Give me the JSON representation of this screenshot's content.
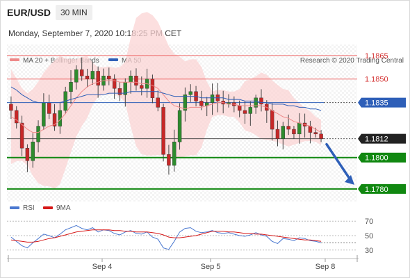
{
  "header": {
    "pair": "EUR/USD",
    "timeframe": "30 MIN",
    "datetime": "Monday, September 7, 2020 10:18:25 PM CET"
  },
  "legend": {
    "ma20": "MA 20 + Bollinger Bands",
    "ma50": "MA 50",
    "credit": "Research © 2020 Trading Central",
    "rsi": "RSI",
    "rsi_ma": "9MA"
  },
  "colors": {
    "bullish": "#2e8b2e",
    "bearish": "#c62828",
    "support": "#118811",
    "resistance": "#ee6666",
    "pivot": "#2e5fb8",
    "current": "#222222",
    "bollinger": "#fbd4d4",
    "ma50": "#2e5fb8",
    "rsi": "#4a78d0",
    "rsi_ma": "#d61818",
    "arrow": "#2e5fb8"
  },
  "chart_data": [
    {
      "type": "candlestick",
      "title": "EUR/USD",
      "timeframe": "30 MIN",
      "x_ticks": [
        "Sep 4",
        "Sep 5",
        "Sep 8"
      ],
      "ylim": [
        1.1772,
        1.1872
      ],
      "levels": [
        {
          "label": "1.1865",
          "value": 1.1865,
          "kind": "resistance"
        },
        {
          "label": "1.1850",
          "value": 1.185,
          "kind": "resistance"
        },
        {
          "label": "1.1835",
          "value": 1.1835,
          "kind": "pivot"
        },
        {
          "label": "1.1812",
          "value": 1.1812,
          "kind": "current"
        },
        {
          "label": "1.1800",
          "value": 1.18,
          "kind": "support"
        },
        {
          "label": "1.1780",
          "value": 1.178,
          "kind": "support"
        }
      ],
      "forecast": {
        "from": 1.1812,
        "to": 1.178
      },
      "series": [
        {
          "name": "EUR/USD",
          "close": [
            1.183,
            1.1822,
            1.1806,
            1.1798,
            1.181,
            1.182,
            1.1835,
            1.1828,
            1.182,
            1.183,
            1.1842,
            1.1848,
            1.1856,
            1.1852,
            1.185,
            1.1855,
            1.1846,
            1.1852,
            1.185,
            1.1844,
            1.184,
            1.1848,
            1.1852,
            1.1846,
            1.1844,
            1.185,
            1.1838,
            1.1832,
            1.1802,
            1.1795,
            1.181,
            1.183,
            1.184,
            1.1842,
            1.1836,
            1.1833,
            1.1835,
            1.184,
            1.1836,
            1.1834,
            1.1835,
            1.1833,
            1.183,
            1.1828,
            1.1832,
            1.1838,
            1.1834,
            1.183,
            1.1818,
            1.1812,
            1.182,
            1.1818,
            1.1815,
            1.1822,
            1.182,
            1.1816,
            1.1815,
            1.1812
          ]
        },
        {
          "name": "MA 20",
          "values": [
            1.1826,
            1.1824,
            1.1821,
            1.1818,
            1.1816,
            1.1816,
            1.1818,
            1.182,
            1.1821,
            1.1824,
            1.1828,
            1.1833,
            1.1838,
            1.1842,
            1.1845,
            1.1847,
            1.1848,
            1.1849,
            1.1849,
            1.1849,
            1.1848,
            1.1848,
            1.1848,
            1.1848,
            1.1847,
            1.1847,
            1.1846,
            1.1844,
            1.184,
            1.1836,
            1.1833,
            1.1832,
            1.1831,
            1.1832,
            1.1832,
            1.1832,
            1.1833,
            1.1834,
            1.1835,
            1.1835,
            1.1834,
            1.1834,
            1.1833,
            1.1833,
            1.1833,
            1.1833,
            1.1833,
            1.1832,
            1.183,
            1.1828,
            1.1826,
            1.1825,
            1.1823,
            1.1822,
            1.1821,
            1.182,
            1.1818,
            1.1816
          ]
        },
        {
          "name": "MA 50",
          "values": [
            1.1845,
            1.1843,
            1.184,
            1.1838,
            1.1836,
            1.1835,
            1.1835,
            1.1835,
            1.1835,
            1.1835,
            1.1836,
            1.1837,
            1.1838,
            1.1839,
            1.184,
            1.184,
            1.184,
            1.184,
            1.1841,
            1.1841,
            1.1841,
            1.1841,
            1.1842,
            1.1842,
            1.1842,
            1.1842,
            1.1842,
            1.1842,
            1.1841,
            1.184,
            1.1839,
            1.1839,
            1.1839,
            1.1839,
            1.1839,
            1.1838,
            1.1838,
            1.1838,
            1.1838,
            1.1838,
            1.1837,
            1.1837,
            1.1837,
            1.1836,
            1.1836,
            1.1836,
            1.1835,
            1.1835,
            1.1834,
            1.1834,
            1.1834,
            1.1833,
            1.1833,
            1.1832,
            1.1832,
            1.1831,
            1.1831,
            1.183
          ]
        }
      ]
    },
    {
      "type": "line",
      "title": "RSI",
      "y_ticks": [
        "70",
        "50",
        "30"
      ],
      "ylim": [
        25,
        75
      ],
      "series": [
        {
          "name": "RSI",
          "values": [
            48,
            42,
            36,
            33,
            40,
            46,
            52,
            50,
            47,
            52,
            58,
            61,
            64,
            60,
            58,
            61,
            55,
            58,
            57,
            53,
            51,
            55,
            57,
            53,
            52,
            55,
            48,
            45,
            33,
            31,
            42,
            55,
            60,
            61,
            56,
            54,
            55,
            57,
            54,
            53,
            54,
            52,
            50,
            49,
            51,
            54,
            51,
            49,
            42,
            39,
            46,
            45,
            43,
            47,
            46,
            43,
            42,
            40
          ]
        },
        {
          "name": "9MA",
          "values": [
            44,
            43,
            42,
            41,
            41,
            42,
            44,
            46,
            47,
            49,
            51,
            53,
            55,
            56,
            57,
            58,
            58,
            58,
            58,
            57,
            57,
            56,
            56,
            55,
            55,
            55,
            54,
            53,
            51,
            48,
            47,
            47,
            48,
            49,
            50,
            52,
            54,
            56,
            56,
            56,
            55,
            55,
            54,
            53,
            53,
            52,
            52,
            51,
            50,
            49,
            48,
            47,
            46,
            45,
            44,
            44,
            43,
            42
          ]
        }
      ]
    }
  ]
}
